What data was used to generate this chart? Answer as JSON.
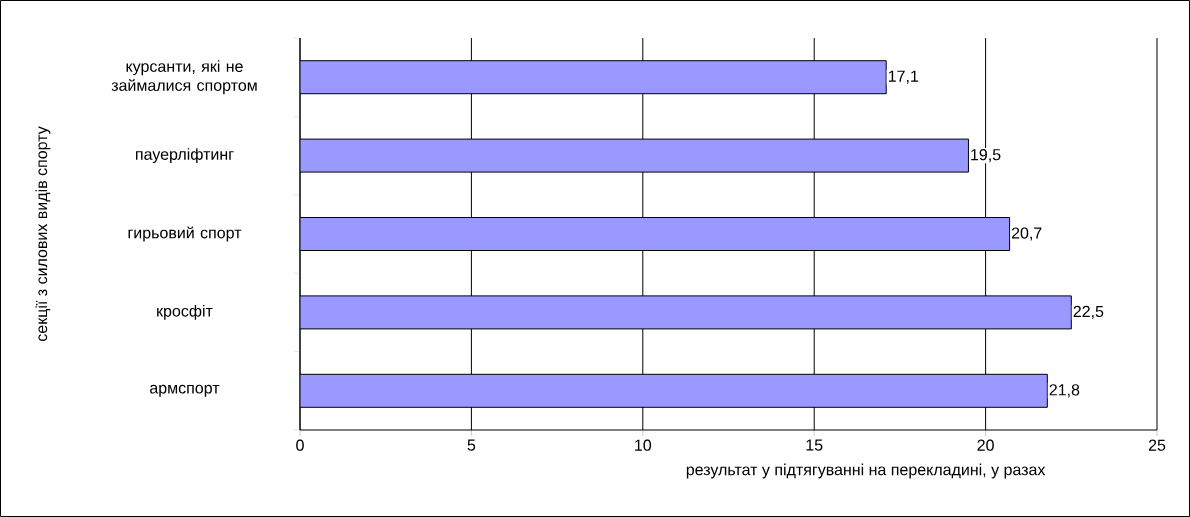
{
  "chart_data": {
    "type": "bar",
    "orientation": "horizontal",
    "ylabel": "секції з силових видів спорту",
    "xlabel": "результат у підтягуванні на перекладині, у разах",
    "categories": [
      "курсанти, які не займалися спортом",
      "пауерліфтинг",
      "гирьовий спорт",
      "кросфіт",
      "армспорт"
    ],
    "values": [
      17.1,
      19.5,
      20.7,
      22.5,
      21.8
    ],
    "value_labels": [
      "17,1",
      "19,5",
      "20,7",
      "22,5",
      "21,8"
    ],
    "color": "#9999ff",
    "xlim": [
      0,
      25
    ],
    "xticks": [
      0,
      5,
      10,
      15,
      20,
      25
    ],
    "grid": "x"
  }
}
